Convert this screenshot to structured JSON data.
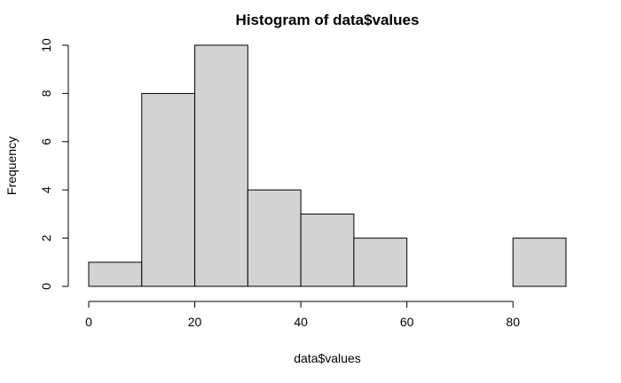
{
  "chart_data": {
    "type": "bar",
    "title": "Histogram of data$values",
    "xlabel": "data$values",
    "ylabel": "Frequency",
    "bins": [
      {
        "start": 0,
        "end": 10,
        "count": 1
      },
      {
        "start": 10,
        "end": 20,
        "count": 8
      },
      {
        "start": 20,
        "end": 30,
        "count": 10
      },
      {
        "start": 30,
        "end": 40,
        "count": 4
      },
      {
        "start": 40,
        "end": 50,
        "count": 3
      },
      {
        "start": 50,
        "end": 60,
        "count": 2
      },
      {
        "start": 60,
        "end": 70,
        "count": 0
      },
      {
        "start": 70,
        "end": 80,
        "count": 0
      },
      {
        "start": 80,
        "end": 90,
        "count": 2
      }
    ],
    "xlim": [
      0,
      90
    ],
    "ylim": [
      0,
      10
    ],
    "x_ticks": [
      0,
      20,
      40,
      60,
      80
    ],
    "y_ticks": [
      0,
      2,
      4,
      6,
      8,
      10
    ],
    "bar_color": "#d3d3d3",
    "grid": false,
    "legend": "none"
  }
}
